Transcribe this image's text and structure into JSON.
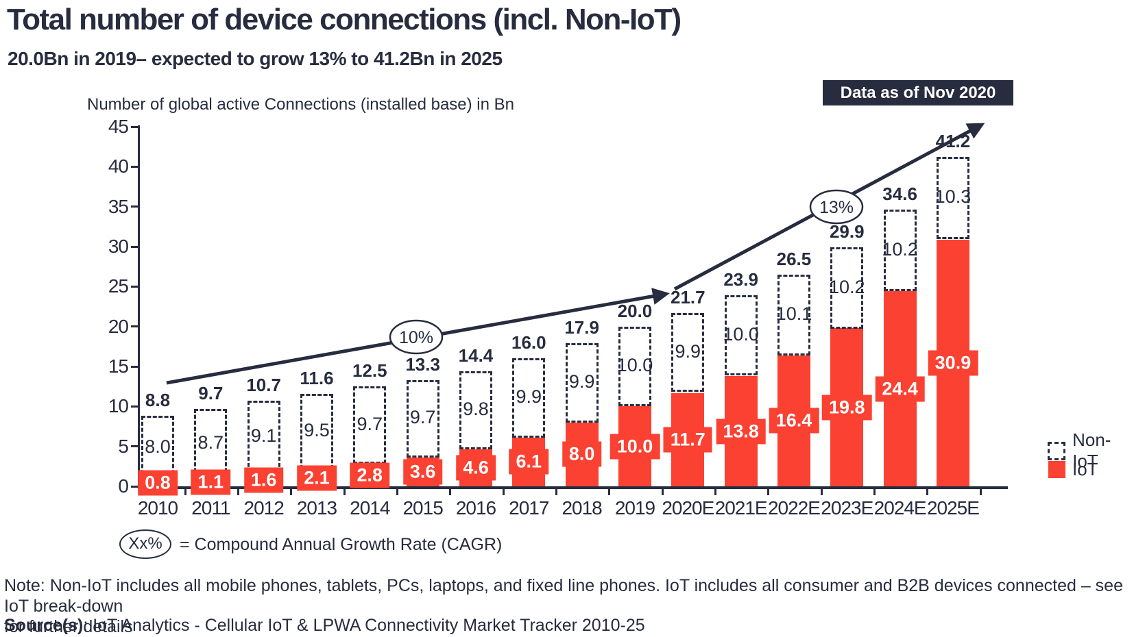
{
  "page": {
    "title": "Total number of device connections (incl. Non-IoT)",
    "subtitle": "20.0Bn in 2019– expected to grow 13% to 41.2Bn in 2025",
    "badge": "Data as of Nov 2020",
    "cagr_symbol": "Xx%",
    "cagr_text": "= Compound Annual Growth Rate (CAGR)",
    "note_line1": "Note: Non-IoT includes all mobile phones, tablets, PCs, laptops, and fixed line phones. IoT includes all consumer and B2B devices connected – see IoT break-down",
    "note_line2": "for further details",
    "source_label": "Source(s)",
    "source_rest": ": IoT Analytics - Cellular IoT & LPWA Connectivity Market Tracker 2010-25"
  },
  "chart_data": {
    "type": "bar",
    "stacked": true,
    "title": "Number of global active Connections (installed base) in Bn",
    "ylabel": "Number of global active Connections (installed base) in Bn",
    "xlabel": "",
    "categories": [
      "2010",
      "2011",
      "2012",
      "2013",
      "2014",
      "2015",
      "2016",
      "2017",
      "2018",
      "2019",
      "2020E",
      "2021E",
      "2022E",
      "2023E",
      "2024E",
      "2025E"
    ],
    "series": [
      {
        "name": "IoT",
        "color": "#FA4132",
        "style": "solid",
        "values": [
          0.8,
          1.1,
          1.6,
          2.1,
          2.8,
          3.6,
          4.6,
          6.1,
          8.0,
          10.0,
          11.7,
          13.8,
          16.4,
          19.8,
          24.4,
          30.9
        ]
      },
      {
        "name": "Non-IoT",
        "color": "#272C3F",
        "style": "dashed-outline",
        "values": [
          8.0,
          8.7,
          9.1,
          9.5,
          9.7,
          9.7,
          9.8,
          9.9,
          9.9,
          10.0,
          9.9,
          10.0,
          10.1,
          10.2,
          10.2,
          10.3
        ]
      }
    ],
    "totals": [
      8.8,
      9.7,
      10.7,
      11.6,
      12.5,
      13.3,
      14.4,
      16.0,
      17.9,
      20.0,
      21.7,
      23.9,
      26.5,
      29.9,
      34.6,
      41.2
    ],
    "ylim": [
      0,
      45
    ],
    "ytick_step": 5,
    "grid": false,
    "legend": [
      "Non-IoT",
      "IoT"
    ],
    "legend_position": "right",
    "annotations": [
      {
        "label": "10%",
        "meaning": "CAGR 2010-2019"
      },
      {
        "label": "13%",
        "meaning": "CAGR 2019-2025"
      }
    ]
  },
  "colors": {
    "accent_red": "#FA4132",
    "navy": "#272C3F",
    "background": "#FFFFFF",
    "badge_text": "#FFFFFF"
  }
}
